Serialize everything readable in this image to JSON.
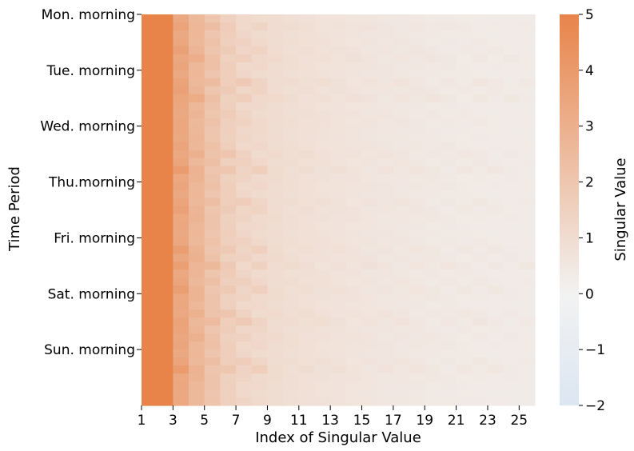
{
  "chart_data": {
    "type": "heatmap",
    "title": "",
    "xlabel": "Index of Singular Value",
    "ylabel": "Time Period",
    "x_ticks": [
      "1",
      "3",
      "5",
      "7",
      "9",
      "11",
      "13",
      "15",
      "17",
      "19",
      "21",
      "23",
      "25"
    ],
    "y_ticks": [
      "Mon. morning",
      "Tue. morning",
      "Wed. morning",
      "Thu.morning",
      "Fri. morning",
      "Sat. morning",
      "Sun. morning"
    ],
    "colorbar": {
      "label": "Singular Value",
      "range": [
        -2,
        5
      ],
      "ticks": [
        "5",
        "4",
        "3",
        "2",
        "1",
        "0",
        "−1",
        "−2"
      ],
      "colors": {
        "low": "#dce6f2",
        "mid": "#f2f2f2",
        "high": "#e8844a"
      }
    },
    "columns": 25,
    "rows": 49,
    "row_ticks_every": 7,
    "row_template": [
      5.0,
      5.0,
      3.3,
      2.6,
      2.0,
      1.5,
      1.2,
      1.05,
      0.95,
      0.85,
      0.8,
      0.72,
      0.66,
      0.6,
      0.56,
      0.52,
      0.48,
      0.45,
      0.42,
      0.4,
      0.38,
      0.36,
      0.34,
      0.32,
      0.3
    ],
    "row_boost": [
      0.0,
      0.3,
      0.1,
      0.2,
      0.3,
      0.4,
      0.2,
      0.1,
      0.5,
      0.3,
      0.5,
      0.1,
      0.2,
      0.2,
      0.1,
      0.1,
      0.2,
      0.4,
      0.3,
      0.5,
      0.2,
      0.2,
      0.1,
      0.4,
      0.3,
      0.2,
      0.1,
      0.1,
      0.2,
      0.4,
      0.3,
      0.5,
      0.2,
      0.3,
      0.4,
      0.2,
      0.1,
      0.4,
      0.5,
      0.2,
      0.3,
      0.2,
      0.1,
      0.4,
      0.5,
      0.2,
      0.1,
      0.0,
      0.1
    ]
  }
}
